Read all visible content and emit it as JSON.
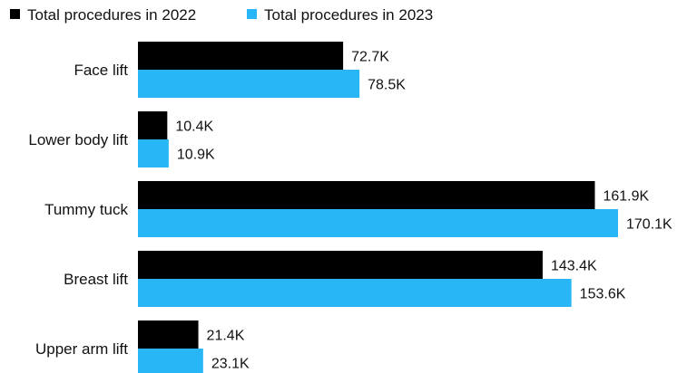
{
  "chart_data": {
    "type": "bar",
    "orientation": "horizontal",
    "categories": [
      "Face lift",
      "Lower body lift",
      "Tummy tuck",
      "Breast lift",
      "Upper arm lift"
    ],
    "series": [
      {
        "name": "Total procedures in 2022",
        "color": "#000000",
        "values": [
          72.7,
          10.4,
          161.9,
          143.4,
          21.4
        ],
        "labels": [
          "72.7K",
          "10.4K",
          "161.9K",
          "143.4K",
          "21.4K"
        ]
      },
      {
        "name": "Total procedures in 2023",
        "color": "#29B6F6",
        "values": [
          78.5,
          10.9,
          170.1,
          153.6,
          23.1
        ],
        "labels": [
          "78.5K",
          "10.9K",
          "170.1K",
          "153.6K",
          "23.1K"
        ]
      }
    ],
    "unit": "K",
    "xlim": [
      0,
      170.1
    ],
    "grid": false,
    "legend_position": "top-left"
  }
}
